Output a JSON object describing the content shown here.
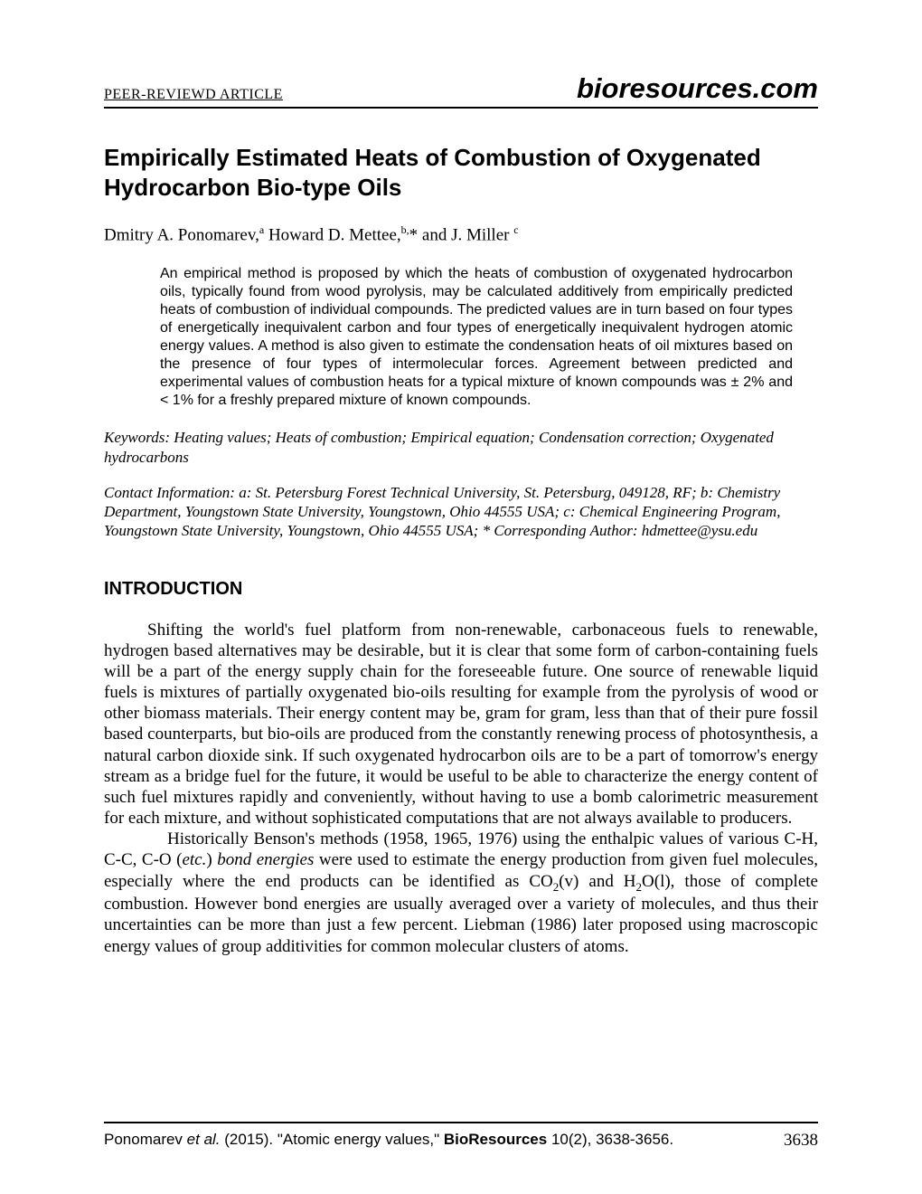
{
  "header": {
    "left_label": "PEER-REVIEWD ARTICLE",
    "right_label": "bioresources.com"
  },
  "title": "Empirically Estimated Heats of Combustion of Oxygenated Hydrocarbon Bio-type Oils",
  "authors_html": "Dmitry A. Ponomarev,<sup>a</sup> Howard D. Mettee,<sup>b,</sup>* and J. Miller <sup>c</sup>",
  "abstract": "An empirical method is proposed by which the heats of combustion of oxygenated hydrocarbon oils, typically found from wood pyrolysis, may be calculated additively from empirically predicted heats of combustion of individual compounds. The predicted values are in turn based on four types of energetically inequivalent carbon and four types of energetically inequivalent hydrogen atomic energy values. A method is also given to estimate the condensation heats of oil mixtures based on the presence of four types of intermolecular forces. Agreement between predicted and experimental values of combustion heats for a typical mixture of known compounds was ± 2% and < 1% for a freshly prepared mixture of known compounds.",
  "keywords": "Keywords: Heating values; Heats of combustion; Empirical equation; Condensation correction; Oxygenated hydrocarbons",
  "contact": "Contact Information: a: St. Petersburg Forest Technical University, St. Petersburg, 049128, RF; b: Chemistry Department, Youngstown State University, Youngstown, Ohio 44555 USA; c: Chemical Engineering Program, Youngstown State University, Youngstown, Ohio 44555 USA; * Corresponding Author: hdmettee@ysu.edu",
  "section_heading": "INTRODUCTION",
  "paragraph1": "Shifting the world's fuel platform from non-renewable, carbonaceous fuels to renewable, hydrogen based alternatives may be desirable, but it is clear that some form of carbon-containing fuels will be a part of the energy supply chain for the foreseeable future. One source of renewable liquid fuels is mixtures of partially oxygenated bio-oils resulting for example from the pyrolysis of wood or other biomass materials. Their energy content may be, gram for gram, less than that of their pure fossil based counterparts, but bio-oils are produced from the constantly renewing process of photosynthesis, a natural carbon dioxide sink. If such oxygenated hydrocarbon oils are to be a part of tomorrow's energy stream as a bridge fuel for the future, it would be useful to be able to characterize the energy content of such fuel mixtures rapidly and conveniently, without having to use a bomb calorimetric measurement for each mixture, and without sophisticated computations that are not always available to producers.",
  "paragraph2_html": "Historically Benson's methods (1958, 1965, 1976) using the enthalpic values of various C-H, C-C, C-O (<em>etc.</em>) <em>bond energies</em> were used to estimate the energy production from given fuel molecules, especially where the end products can be identified as CO<span class=\"sub\">2</span>(v) and H<span class=\"sub\">2</span>O(l), those of complete combustion. However bond energies are usually averaged over a variety of molecules, and thus their uncertainties can be more than just a few percent. Liebman (1986) later proposed using macroscopic energy values of group additivities for common molecular clusters of atoms.",
  "footer": {
    "citation_html": "Ponomarev <span class=\"italic\">et al.</span> (2015). \"Atomic energy values,\" <span class=\"bold\">BioResources</span> 10(2), 3638-3656.",
    "page_number": "3638"
  }
}
